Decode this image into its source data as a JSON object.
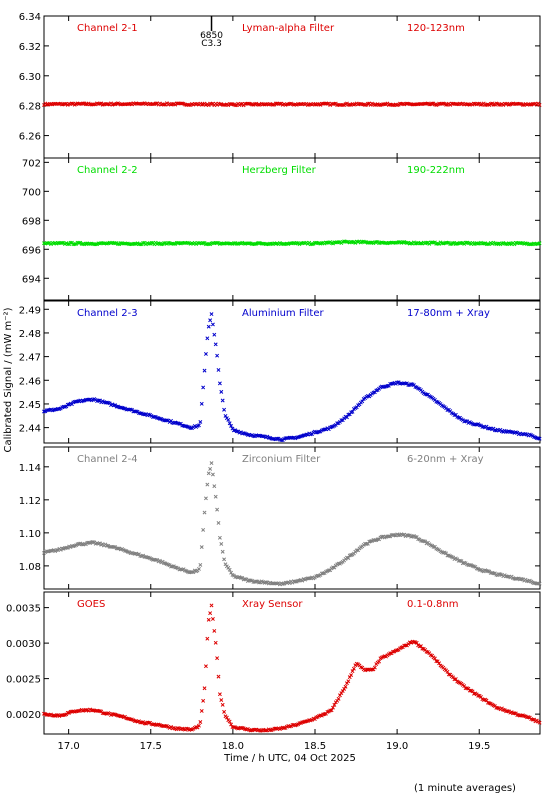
{
  "page": {
    "ylabel": "Calibrated Signal / (mW m⁻²)",
    "xlabel": "Time / h UTC, 04 Oct 2025",
    "footnote": "(1 minute averages)"
  },
  "marker": {
    "label_top": "6850",
    "label_bottom": "C3.3",
    "x": 17.87
  },
  "chart_data": [
    {
      "type": "scatter",
      "channel": "Channel 2-1",
      "filter": "Lyman-alpha Filter",
      "band": "120-123nm",
      "color": "#dd0000",
      "xlim": [
        16.85,
        19.87
      ],
      "ylim": [
        6.245,
        6.34
      ],
      "yticks": [
        "6.26",
        "6.28",
        "6.30",
        "6.32",
        "6.34"
      ],
      "series": [
        {
          "x": [
            16.85,
            17.5,
            18.0,
            18.5,
            19.0,
            19.5,
            19.87
          ],
          "y": [
            6.281,
            6.2812,
            6.2808,
            6.281,
            6.2809,
            6.281,
            6.281
          ]
        }
      ]
    },
    {
      "type": "scatter",
      "channel": "Channel 2-2",
      "filter": "Herzberg Filter",
      "band": "190-222nm",
      "color": "#00dd00",
      "xlim": [
        16.85,
        19.87
      ],
      "ylim": [
        692.5,
        702.3
      ],
      "yticks": [
        "694",
        "696",
        "698",
        "700",
        "702"
      ],
      "series": [
        {
          "x": [
            16.85,
            17.5,
            18.0,
            18.5,
            18.7,
            19.0,
            19.5,
            19.87
          ],
          "y": [
            696.4,
            696.4,
            696.4,
            696.4,
            696.5,
            696.45,
            696.4,
            696.4
          ]
        }
      ]
    },
    {
      "type": "scatter",
      "channel": "Channel 2-3",
      "filter": "Aluminium Filter",
      "band": "17-80nm + Xray",
      "color": "#0000cc",
      "xlim": [
        16.85,
        19.87
      ],
      "ylim": [
        2.4335,
        2.4935
      ],
      "yticks": [
        "2.44",
        "2.45",
        "2.46",
        "2.47",
        "2.48",
        "2.49"
      ],
      "series": [
        {
          "x": [
            16.85,
            16.95,
            17.05,
            17.15,
            17.25,
            17.35,
            17.45,
            17.55,
            17.65,
            17.75,
            17.8,
            17.83,
            17.85,
            17.87,
            17.9,
            17.92,
            17.95,
            18.0,
            18.1,
            18.2,
            18.3,
            18.4,
            18.5,
            18.6,
            18.7,
            18.8,
            18.9,
            19.0,
            19.1,
            19.2,
            19.3,
            19.4,
            19.5,
            19.6,
            19.7,
            19.8,
            19.87
          ],
          "y": [
            2.447,
            2.448,
            2.451,
            2.452,
            2.45,
            2.448,
            2.446,
            2.444,
            2.442,
            2.44,
            2.441,
            2.466,
            2.482,
            2.488,
            2.473,
            2.459,
            2.446,
            2.439,
            2.437,
            2.436,
            2.435,
            2.436,
            2.438,
            2.44,
            2.445,
            2.452,
            2.457,
            2.459,
            2.458,
            2.453,
            2.448,
            2.443,
            2.441,
            2.439,
            2.438,
            2.437,
            2.435
          ]
        }
      ]
    },
    {
      "type": "scatter",
      "channel": "Channel 2-4",
      "filter": "Zirconium Filter",
      "band": "6-20nm + Xray",
      "color": "#808080",
      "xlim": [
        16.85,
        19.87
      ],
      "ylim": [
        1.066,
        1.152
      ],
      "yticks": [
        "1.08",
        "1.10",
        "1.12",
        "1.14"
      ],
      "series": [
        {
          "x": [
            16.85,
            16.95,
            17.05,
            17.15,
            17.25,
            17.35,
            17.45,
            17.55,
            17.65,
            17.75,
            17.8,
            17.83,
            17.85,
            17.87,
            17.9,
            17.92,
            17.95,
            18.0,
            18.1,
            18.2,
            18.3,
            18.4,
            18.5,
            18.6,
            18.7,
            18.8,
            18.9,
            19.0,
            19.1,
            19.2,
            19.3,
            19.4,
            19.5,
            19.6,
            19.7,
            19.8,
            19.87
          ],
          "y": [
            1.088,
            1.09,
            1.093,
            1.094,
            1.092,
            1.089,
            1.086,
            1.083,
            1.079,
            1.076,
            1.078,
            1.115,
            1.135,
            1.142,
            1.118,
            1.098,
            1.082,
            1.074,
            1.071,
            1.07,
            1.069,
            1.071,
            1.073,
            1.078,
            1.085,
            1.093,
            1.097,
            1.099,
            1.098,
            1.093,
            1.087,
            1.082,
            1.078,
            1.075,
            1.073,
            1.071,
            1.069
          ]
        }
      ]
    },
    {
      "type": "scatter",
      "channel": "GOES",
      "filter": "Xray Sensor",
      "band": "0.1-0.8nm",
      "color": "#dd0000",
      "xlim": [
        16.85,
        19.87
      ],
      "ylim": [
        0.00172,
        0.00372
      ],
      "yticks": [
        "0.0020",
        "0.0025",
        "0.0030",
        "0.0035"
      ],
      "series": [
        {
          "x": [
            16.85,
            16.95,
            17.05,
            17.15,
            17.25,
            17.35,
            17.45,
            17.55,
            17.65,
            17.75,
            17.8,
            17.83,
            17.85,
            17.87,
            17.9,
            17.92,
            17.95,
            18.0,
            18.1,
            18.2,
            18.3,
            18.4,
            18.5,
            18.6,
            18.7,
            18.75,
            18.8,
            18.85,
            18.9,
            19.0,
            19.1,
            19.2,
            19.3,
            19.4,
            19.5,
            19.6,
            19.7,
            19.8,
            19.87
          ],
          "y": [
            0.002,
            0.00198,
            0.00205,
            0.00206,
            0.002,
            0.00195,
            0.00188,
            0.00185,
            0.0018,
            0.00178,
            0.00184,
            0.0024,
            0.0033,
            0.00352,
            0.0029,
            0.0023,
            0.002,
            0.00182,
            0.00178,
            0.00177,
            0.0018,
            0.00186,
            0.00194,
            0.00205,
            0.00245,
            0.00272,
            0.00262,
            0.00262,
            0.00278,
            0.0029,
            0.00303,
            0.00285,
            0.0026,
            0.0024,
            0.00225,
            0.0021,
            0.00202,
            0.00195,
            0.00188
          ]
        }
      ]
    }
  ],
  "xaxis": {
    "ticks": [
      "17.0",
      "17.5",
      "18.0",
      "18.5",
      "19.0",
      "19.5"
    ]
  }
}
